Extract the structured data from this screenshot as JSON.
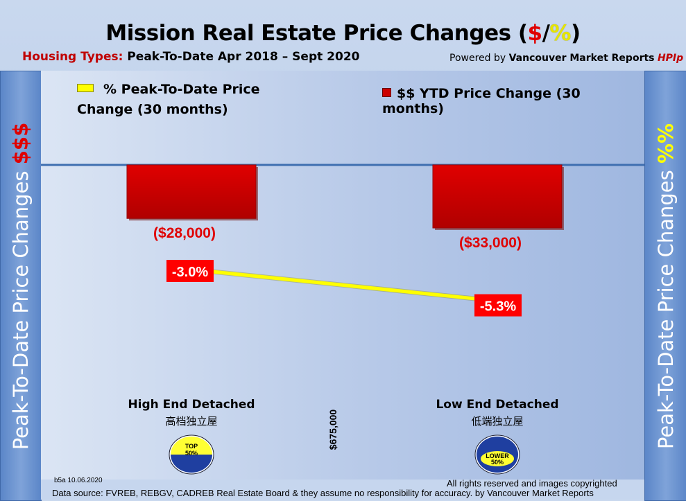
{
  "title": {
    "prefix": "Mission Real Estate Price Changes (",
    "dollar": "$",
    "slash": "/",
    "pct": "%",
    "suffix": ")"
  },
  "subtitle": {
    "label": "Housing Types:",
    "text": "Peak-To-Date Apr 2018 – Sept 2020"
  },
  "powered": {
    "prefix": "Powered by",
    "brand": "Vancouver Market Reports",
    "hpi": "HPIp"
  },
  "side_left": {
    "text": "Peak-To-Date Price Changes",
    "accent": "$$$"
  },
  "side_right": {
    "text": "Peak-To-Date  Price  Changes",
    "accent": "%%"
  },
  "legend": {
    "pct": "% Peak-To-Date Price Change (30 months)",
    "dollar": "$$ YTD Price Change (30 months)"
  },
  "price_divider": "$675,000",
  "footer": {
    "date": "b5a 10.06.2020",
    "rights": "All rights reserved and  images copyrighted",
    "source": "Data source: FVREB, REBGV, CADREB Real Estate Board & they assume no responsibility for accuracy. by Vancouver Market Reports"
  },
  "badges": [
    {
      "line1": "TOP",
      "line2": "50%"
    },
    {
      "line1": "LOWER",
      "line2": "50%"
    }
  ],
  "colors": {
    "bar": "#cc0000",
    "line": "#ffff00",
    "label_bg": "#ff0000",
    "badge_yellow": "#ffff33",
    "badge_blue": "#1f3fa0"
  },
  "chart_data": {
    "type": "bar",
    "categories": [
      "High End Detached",
      "Low End Detached"
    ],
    "categories_sub": [
      "高档独立屋",
      "低端独立屋"
    ],
    "series": [
      {
        "name": "$$ YTD Price Change (30 months)",
        "type": "bar",
        "values": [
          -28000,
          -33000
        ],
        "labels": [
          "($28,000)",
          "($33,000)"
        ]
      },
      {
        "name": "% Peak-To-Date Price Change (30 months)",
        "type": "line",
        "values": [
          -3.0,
          -5.3
        ],
        "labels": [
          "-3.0%",
          "-5.3%"
        ]
      }
    ]
  }
}
